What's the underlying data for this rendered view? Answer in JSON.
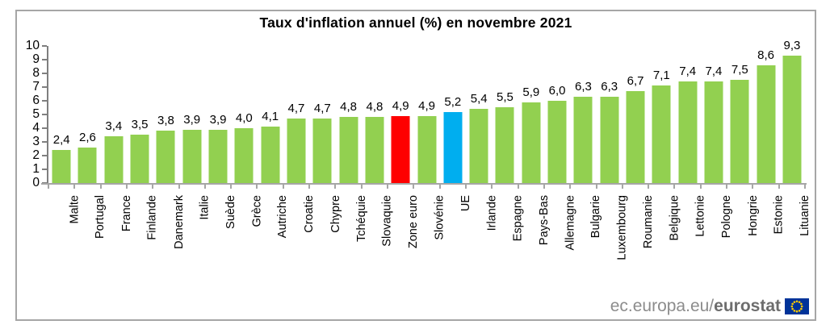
{
  "title": "Taux d'inflation annuel (%) en novembre 2021",
  "chart_data": {
    "type": "bar",
    "title": "Taux d'inflation annuel (%) en novembre 2021",
    "xlabel": "",
    "ylabel": "",
    "ylim": [
      0,
      10
    ],
    "y_tick_step": 1,
    "grid": false,
    "legend": false,
    "value_label_format": "french-decimal-comma",
    "categories": [
      "Malte",
      "Portugal",
      "France",
      "Finlande",
      "Danemark",
      "Italie",
      "Suède",
      "Grèce",
      "Autriche",
      "Croatie",
      "Chypre",
      "Tchéquie",
      "Slovaquie",
      "Zone euro",
      "Slovénie",
      "UE",
      "Irlande",
      "Espagne",
      "Pays-Bas",
      "Allemagne",
      "Bulgarie",
      "Luxembourg",
      "Roumanie",
      "Belgique",
      "Lettonie",
      "Pologne",
      "Hongrie",
      "Estonie",
      "Lituanie"
    ],
    "points": [
      {
        "label": "Malte",
        "value": 2.4,
        "display": "2,4",
        "color": "green"
      },
      {
        "label": "Portugal",
        "value": 2.6,
        "display": "2,6",
        "color": "green"
      },
      {
        "label": "France",
        "value": 3.4,
        "display": "3,4",
        "color": "green"
      },
      {
        "label": "Finlande",
        "value": 3.5,
        "display": "3,5",
        "color": "green"
      },
      {
        "label": "Danemark",
        "value": 3.8,
        "display": "3,8",
        "color": "green"
      },
      {
        "label": "Italie",
        "value": 3.9,
        "display": "3,9",
        "color": "green"
      },
      {
        "label": "Suède",
        "value": 3.9,
        "display": "3,9",
        "color": "green"
      },
      {
        "label": "Grèce",
        "value": 4.0,
        "display": "4,0",
        "color": "green"
      },
      {
        "label": "Autriche",
        "value": 4.1,
        "display": "4,1",
        "color": "green"
      },
      {
        "label": "Croatie",
        "value": 4.7,
        "display": "4,7",
        "color": "green"
      },
      {
        "label": "Chypre",
        "value": 4.7,
        "display": "4,7",
        "color": "green"
      },
      {
        "label": "Tchéquie",
        "value": 4.8,
        "display": "4,8",
        "color": "green"
      },
      {
        "label": "Slovaquie",
        "value": 4.8,
        "display": "4,8",
        "color": "green"
      },
      {
        "label": "Zone euro",
        "value": 4.9,
        "display": "4,9",
        "color": "red"
      },
      {
        "label": "Slovénie",
        "value": 4.9,
        "display": "4,9",
        "color": "green"
      },
      {
        "label": "UE",
        "value": 5.2,
        "display": "5,2",
        "color": "blue"
      },
      {
        "label": "Irlande",
        "value": 5.4,
        "display": "5,4",
        "color": "green"
      },
      {
        "label": "Espagne",
        "value": 5.5,
        "display": "5,5",
        "color": "green"
      },
      {
        "label": "Pays-Bas",
        "value": 5.9,
        "display": "5,9",
        "color": "green"
      },
      {
        "label": "Allemagne",
        "value": 6.0,
        "display": "6,0",
        "color": "green"
      },
      {
        "label": "Bulgarie",
        "value": 6.3,
        "display": "6,3",
        "color": "green"
      },
      {
        "label": "Luxembourg",
        "value": 6.3,
        "display": "6,3",
        "color": "green"
      },
      {
        "label": "Roumanie",
        "value": 6.7,
        "display": "6,7",
        "color": "green"
      },
      {
        "label": "Belgique",
        "value": 7.1,
        "display": "7,1",
        "color": "green"
      },
      {
        "label": "Lettonie",
        "value": 7.4,
        "display": "7,4",
        "color": "green"
      },
      {
        "label": "Pologne",
        "value": 7.4,
        "display": "7,4",
        "color": "green"
      },
      {
        "label": "Hongrie",
        "value": 7.5,
        "display": "7,5",
        "color": "green"
      },
      {
        "label": "Estonie",
        "value": 8.6,
        "display": "8,6",
        "color": "green"
      },
      {
        "label": "Lituanie",
        "value": 9.3,
        "display": "9,3",
        "color": "green"
      }
    ],
    "y_tick_labels": [
      "0",
      "1",
      "2",
      "3",
      "4",
      "5",
      "6",
      "7",
      "8",
      "9",
      "10"
    ],
    "highlighted_bars": [
      {
        "label": "Zone euro",
        "color_role": "red"
      },
      {
        "label": "UE",
        "color_role": "blue"
      }
    ]
  },
  "colors": {
    "green": "#92D050",
    "red": "#FE0000",
    "blue": "#00AEEF",
    "axis_dark": "#7F7F7F",
    "axis_light": "#A6A6A6",
    "frame_border": "#A6A6A6",
    "flag_blue": "#003399",
    "flag_stars": "#FFCC00"
  },
  "footer": {
    "url_regular": "ec.europa.eu/",
    "url_bold": "eurostat"
  }
}
